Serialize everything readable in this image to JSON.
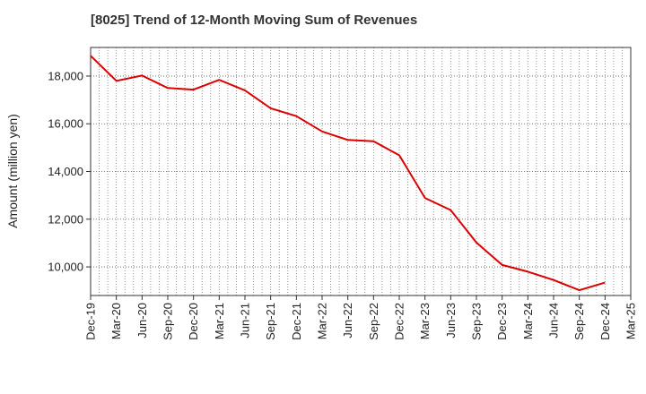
{
  "chart_data": {
    "type": "line",
    "title": "[8025]  Trend of 12-Month Moving Sum of Revenues",
    "xlabel": "",
    "ylabel": "Amount (million yen)",
    "x_ticks": [
      "Dec-19",
      "Mar-20",
      "Jun-20",
      "Sep-20",
      "Dec-20",
      "Mar-21",
      "Jun-21",
      "Sep-21",
      "Dec-21",
      "Mar-22",
      "Jun-22",
      "Sep-22",
      "Dec-22",
      "Mar-23",
      "Jun-23",
      "Sep-23",
      "Dec-23",
      "Mar-24",
      "Jun-24",
      "Sep-24",
      "Dec-24",
      "Mar-25"
    ],
    "y_ticks": [
      "10,000",
      "12,000",
      "14,000",
      "16,000",
      "18,000"
    ],
    "y_tick_values": [
      10000,
      12000,
      14000,
      16000,
      18000
    ],
    "ylim": [
      8800,
      19200
    ],
    "grid": true,
    "line_color": "#dd0000",
    "series": [
      {
        "x": [
          "Dec-19",
          "Mar-20",
          "Jun-20",
          "Sep-20",
          "Dec-20",
          "Mar-21",
          "Jun-21",
          "Sep-21",
          "Dec-21",
          "Mar-22",
          "Jun-22",
          "Sep-22",
          "Dec-22",
          "Mar-23",
          "Jun-23",
          "Sep-23",
          "Dec-23",
          "Mar-24",
          "Jun-24",
          "Sep-24",
          "Dec-24"
        ],
        "values": [
          18850,
          17800,
          18020,
          17500,
          17430,
          17840,
          17400,
          16650,
          16320,
          15680,
          15320,
          15270,
          14680,
          12890,
          12380,
          11020,
          10080,
          9800,
          9450,
          9020,
          9340
        ]
      }
    ]
  }
}
